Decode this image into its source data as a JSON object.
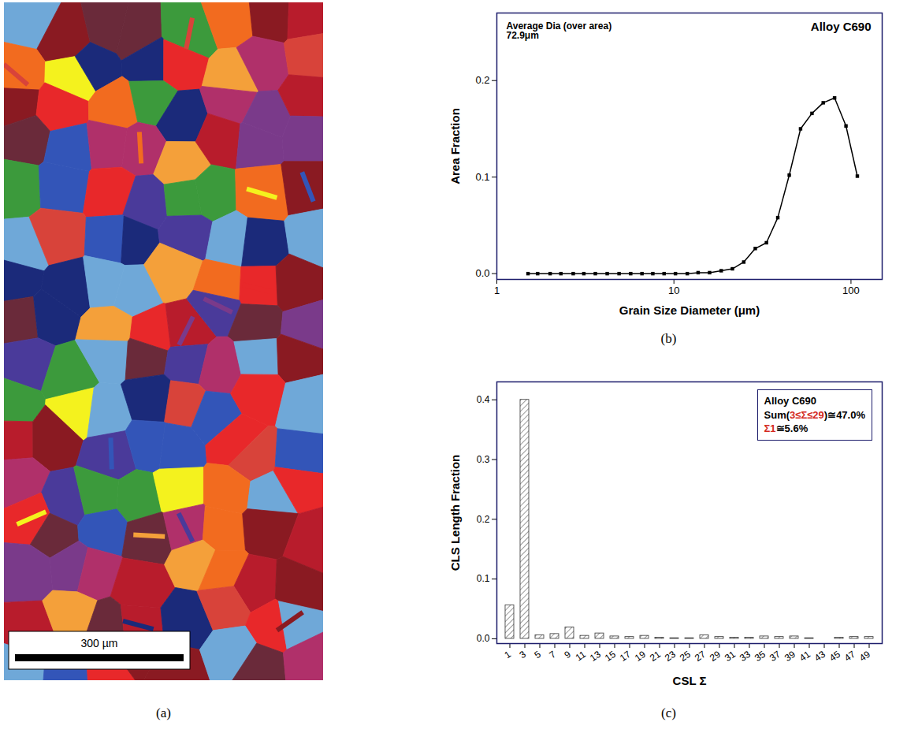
{
  "chart_data": [
    {
      "type": "grain_map",
      "panel": "(a)",
      "scale_bar_label": "300 µm"
    },
    {
      "type": "line",
      "panel": "(b)",
      "x_label": "Grain Size Diameter (μm)",
      "y_label": "Area Fraction",
      "annotation_left": [
        "Average Dia (over area)",
        "72.9μm"
      ],
      "annotation_right": "Alloy C690",
      "x": [
        1.5,
        1.7,
        2.0,
        2.3,
        2.7,
        3.1,
        3.6,
        4.2,
        4.9,
        5.7,
        6.6,
        7.6,
        8.8,
        10.2,
        11.9,
        13.7,
        15.9,
        18.5,
        21.4,
        24.8,
        28.8,
        33.3,
        38.6,
        44.8,
        51.9,
        60.2,
        69.7,
        80.8,
        93.7,
        108.6
      ],
      "values": [
        0,
        0,
        0,
        0,
        0,
        0,
        0,
        0,
        0,
        0,
        0,
        0,
        0,
        0,
        0,
        0.001,
        0.001,
        0.003,
        0.005,
        0.012,
        0.026,
        0.032,
        0.058,
        0.102,
        0.15,
        0.166,
        0.177,
        0.182,
        0.153,
        0.101
      ],
      "color": "#000000",
      "marker": "square",
      "log": "x",
      "xlim": [
        1,
        150
      ],
      "xticks": [
        1,
        10,
        100
      ],
      "ylim": [
        -0.006,
        0.27
      ],
      "yticks": [
        {
          "value": 0,
          "label": "0.0"
        },
        0.1,
        0.2
      ],
      "grid": false
    },
    {
      "type": "bar",
      "panel": "(c)",
      "x_label": "CSL Σ",
      "y_label": "CLS Length Fraction",
      "annotation_box": [
        [
          {
            "text": "Alloy C690"
          }
        ],
        [
          {
            "text": "Sum("
          },
          {
            "text": "3≤Σ≤29",
            "color": "#d42a1e"
          },
          {
            "text": ")≅47.0%"
          }
        ],
        [
          {
            "text": "Σ1",
            "color": "#d42a1e"
          },
          {
            "text": "≅5.6%"
          }
        ]
      ],
      "categories": [
        1,
        3,
        5,
        7,
        9,
        11,
        13,
        15,
        17,
        19,
        21,
        23,
        25,
        27,
        29,
        31,
        33,
        35,
        37,
        39,
        41,
        43,
        45,
        47,
        49
      ],
      "values": [
        0.056,
        0.4,
        0.006,
        0.008,
        0.019,
        0.005,
        0.009,
        0.004,
        0.003,
        0.005,
        0.002,
        0.001,
        0.001,
        0.006,
        0.003,
        0.002,
        0.002,
        0.004,
        0.003,
        0.004,
        0.001,
        0,
        0.002,
        0.003,
        0.003
      ],
      "color": "#333333",
      "ylim": [
        -0.008,
        0.43
      ],
      "yticks": [
        {
          "value": 0,
          "label": "0.0"
        },
        0.1,
        0.2,
        0.3,
        0.4
      ],
      "grid": false
    }
  ]
}
